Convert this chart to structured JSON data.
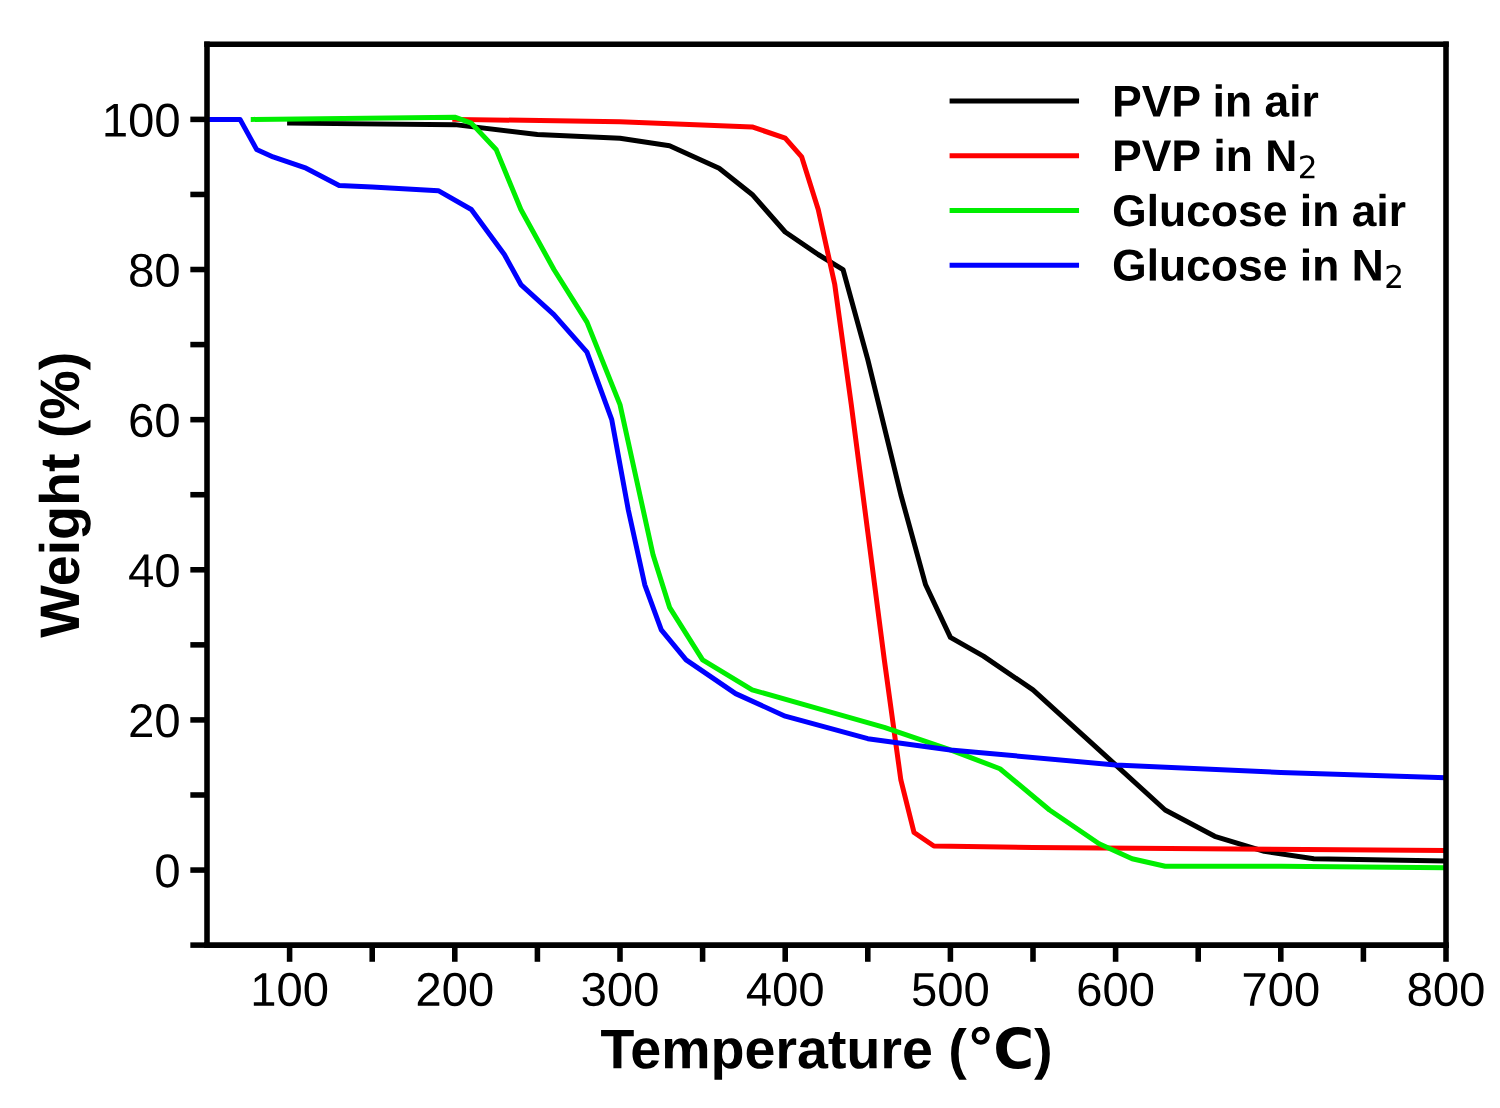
{
  "chart_data": {
    "type": "line",
    "xlabel": "Temperature (℃)",
    "ylabel": "Weight (%)",
    "xlim": [
      50,
      800
    ],
    "ylim": [
      -10,
      110
    ],
    "xticks": [
      100,
      {
        "value": 150,
        "label": null
      },
      200,
      {
        "value": 250,
        "label": null
      },
      300,
      {
        "value": 350,
        "label": null
      },
      400,
      {
        "value": 450,
        "label": null
      },
      500,
      {
        "value": 550,
        "label": null
      },
      600,
      {
        "value": 650,
        "label": null
      },
      700,
      {
        "value": 750,
        "label": null
      },
      800
    ],
    "yticks": [
      {
        "value": -10,
        "label": null
      },
      0,
      {
        "value": 10,
        "label": null
      },
      20,
      {
        "value": 30,
        "label": null
      },
      40,
      {
        "value": 50,
        "label": null
      },
      60,
      {
        "value": 70,
        "label": null
      },
      80,
      {
        "value": 90,
        "label": null
      },
      100
    ],
    "grid": false,
    "legend": "top right",
    "marker": "none",
    "line_style": "solid",
    "series": [
      {
        "name": "PVP in air",
        "color": "#000000",
        "x": [
          100,
          200,
          250,
          300,
          330,
          360,
          380,
          400,
          420,
          435,
          450,
          470,
          485,
          500,
          520,
          550,
          580,
          600,
          630,
          660,
          690,
          720,
          800
        ],
        "values": [
          99.5,
          99.3,
          98,
          97.5,
          96.5,
          93.5,
          90,
          85,
          82,
          80,
          68,
          50,
          38,
          31,
          28.5,
          24,
          18,
          14,
          8,
          4.5,
          2.5,
          1.5,
          1.2
        ]
      },
      {
        "name": "PVP in N$_{2}$",
        "color": "#ff0000",
        "x": [
          200,
          300,
          380,
          400,
          410,
          420,
          430,
          440,
          450,
          460,
          470,
          478,
          490,
          550,
          800
        ],
        "values": [
          100,
          99.7,
          99,
          97.5,
          95,
          88,
          78,
          62,
          45,
          28,
          12,
          5,
          3.2,
          3,
          2.6
        ]
      },
      {
        "name": "Glucose in air",
        "color": "#00ee00",
        "x": [
          78,
          200,
          210,
          225,
          240,
          260,
          280,
          300,
          310,
          320,
          330,
          350,
          380,
          420,
          460,
          500,
          530,
          560,
          590,
          610,
          630,
          700,
          800
        ],
        "values": [
          100,
          100.3,
          99.5,
          96,
          88,
          80,
          73,
          62,
          52,
          42,
          35,
          28,
          24,
          21.5,
          19,
          16,
          13.5,
          8,
          3.5,
          1.5,
          0.5,
          0.5,
          0.3
        ]
      },
      {
        "name": "Glucose in N$_{2}$",
        "color": "#0000ff",
        "x": [
          50,
          70,
          80,
          90,
          110,
          130,
          150,
          190,
          210,
          230,
          240,
          260,
          280,
          295,
          305,
          315,
          325,
          340,
          370,
          400,
          450,
          500,
          600,
          700,
          800
        ],
        "values": [
          100,
          100,
          96,
          95,
          93.5,
          91.2,
          91,
          90.5,
          88,
          82,
          78,
          74,
          69,
          60,
          48,
          38,
          32,
          28,
          23.5,
          20.5,
          17.5,
          16,
          14,
          13,
          12.3
        ]
      }
    ]
  }
}
